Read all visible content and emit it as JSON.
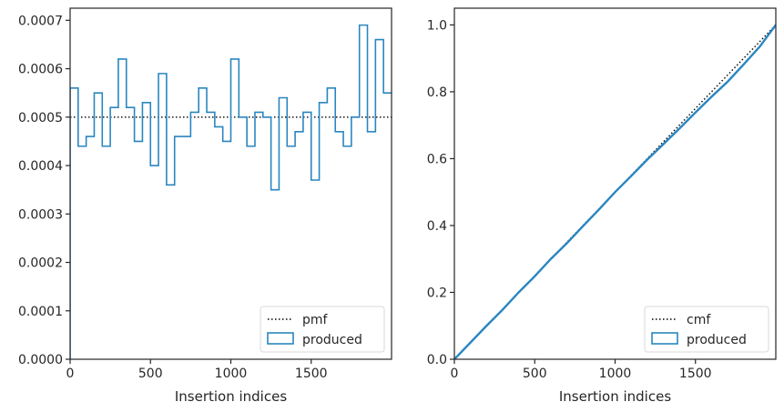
{
  "chart_data": [
    {
      "type": "step-histogram",
      "xlabel": "Insertion indices",
      "ylabel": "",
      "xlim": [
        0,
        2000
      ],
      "ylim": [
        0,
        0.000725
      ],
      "xticks": [
        0,
        500,
        1000,
        1500
      ],
      "xtick_labels": [
        "0",
        "500",
        "1000",
        "1500"
      ],
      "yticks": [
        0,
        0.0001,
        0.0002,
        0.0003,
        0.0004,
        0.0005,
        0.0006,
        0.0007
      ],
      "ytick_labels": [
        "0.0000",
        "0.0001",
        "0.0002",
        "0.0003",
        "0.0004",
        "0.0005",
        "0.0006",
        "0.0007"
      ],
      "grid": false,
      "legend_position": "lower right",
      "bin_width": 50,
      "bin_edges_start": 0,
      "series": [
        {
          "name": "pmf",
          "style": "dotted",
          "color": "#000000",
          "x": [
            0,
            2000
          ],
          "y": [
            0.0005,
            0.0005
          ]
        },
        {
          "name": "produced",
          "style": "step-outline",
          "color": "#2a86c0",
          "values": [
            0.00056,
            0.00044,
            0.00046,
            0.00055,
            0.00044,
            0.00052,
            0.00062,
            0.00052,
            0.00045,
            0.00053,
            0.0004,
            0.00059,
            0.00036,
            0.00046,
            0.00046,
            0.00051,
            0.00056,
            0.00051,
            0.00048,
            0.00045,
            0.00062,
            0.0005,
            0.00044,
            0.00051,
            0.0005,
            0.00035,
            0.00054,
            0.00044,
            0.00047,
            0.00051,
            0.00037,
            0.00053,
            0.00056,
            0.00047,
            0.00044,
            0.0005,
            0.00069,
            0.00047,
            0.00066,
            0.00055
          ]
        }
      ]
    },
    {
      "type": "line",
      "xlabel": "Insertion indices",
      "ylabel": "",
      "xlim": [
        0,
        2000
      ],
      "ylim": [
        0,
        1.05
      ],
      "xticks": [
        0,
        500,
        1000,
        1500
      ],
      "xtick_labels": [
        "0",
        "500",
        "1000",
        "1500"
      ],
      "yticks": [
        0,
        0.2,
        0.4,
        0.6,
        0.8,
        1.0
      ],
      "ytick_labels": [
        "0.0",
        "0.2",
        "0.4",
        "0.6",
        "0.8",
        "1.0"
      ],
      "grid": false,
      "legend_position": "lower right",
      "series": [
        {
          "name": "cmf",
          "style": "dotted",
          "color": "#000000",
          "x": [
            0,
            2000
          ],
          "y": [
            0,
            1.0
          ]
        },
        {
          "name": "produced",
          "style": "solid",
          "color": "#2a86c0",
          "x": [
            0,
            100,
            200,
            300,
            400,
            500,
            600,
            700,
            800,
            900,
            1000,
            1100,
            1200,
            1300,
            1400,
            1500,
            1600,
            1700,
            1800,
            1900,
            2000
          ],
          "y": [
            0,
            0.05,
            0.1,
            0.148,
            0.2,
            0.248,
            0.3,
            0.347,
            0.398,
            0.448,
            0.5,
            0.548,
            0.597,
            0.643,
            0.69,
            0.738,
            0.785,
            0.83,
            0.882,
            0.935,
            1.0
          ]
        }
      ]
    }
  ]
}
